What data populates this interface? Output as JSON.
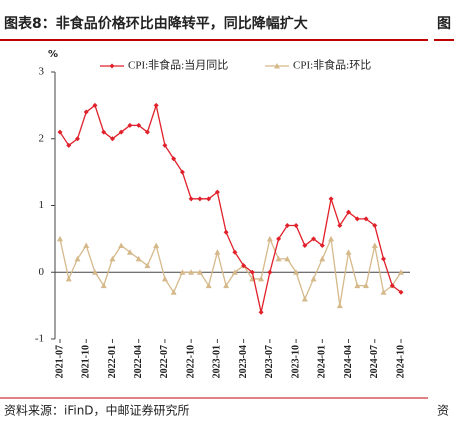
{
  "header": {
    "title": "图表8：非食品价格环比由降转平，同比降幅扩大",
    "next_title_fragment": "图"
  },
  "chart_data": {
    "type": "line",
    "y_unit": "%",
    "categories": [
      "2021-07",
      null,
      null,
      "2021-10",
      null,
      null,
      "2022-01",
      null,
      null,
      "2022-04",
      null,
      null,
      "2022-07",
      null,
      null,
      "2022-10",
      null,
      null,
      "2023-01",
      null,
      null,
      "2023-04",
      null,
      null,
      "2023-07",
      null,
      null,
      "2023-10",
      null,
      null,
      "2024-01",
      null,
      null,
      "2024-04",
      null,
      null,
      "2024-07",
      null,
      null,
      "2024-10"
    ],
    "series": [
      {
        "name": "CPI:非食品:当月同比",
        "color": "#e0202a",
        "marker": "diamond",
        "values": [
          2.1,
          1.9,
          2.0,
          2.4,
          2.5,
          2.1,
          2.0,
          2.1,
          2.2,
          2.2,
          2.1,
          2.5,
          1.9,
          1.7,
          1.5,
          1.1,
          1.1,
          1.1,
          1.2,
          0.6,
          0.3,
          0.1,
          0.0,
          -0.6,
          0.0,
          0.5,
          0.7,
          0.7,
          0.4,
          0.5,
          0.4,
          1.1,
          0.7,
          0.9,
          0.8,
          0.8,
          0.7,
          0.2,
          -0.2,
          -0.3
        ]
      },
      {
        "name": "CPI:非食品:环比",
        "color": "#d6b98a",
        "marker": "triangle",
        "values": [
          0.5,
          -0.1,
          0.2,
          0.4,
          0.0,
          -0.2,
          0.2,
          0.4,
          0.3,
          0.2,
          0.1,
          0.4,
          -0.1,
          -0.3,
          0.0,
          0.0,
          0.0,
          -0.2,
          0.3,
          -0.2,
          0.0,
          0.1,
          -0.1,
          -0.1,
          0.5,
          0.2,
          0.2,
          0.0,
          -0.4,
          -0.1,
          0.2,
          0.5,
          -0.5,
          0.3,
          -0.2,
          -0.2,
          0.4,
          -0.3,
          -0.2,
          0.0
        ]
      }
    ],
    "ylim": [
      -1,
      3
    ],
    "yticks": [
      -1,
      0,
      1,
      2,
      3
    ],
    "grid": false,
    "legend": "top"
  },
  "footer": {
    "source": "资料来源：iFinD，中邮证券研究所",
    "next_source_fragment": "资"
  }
}
